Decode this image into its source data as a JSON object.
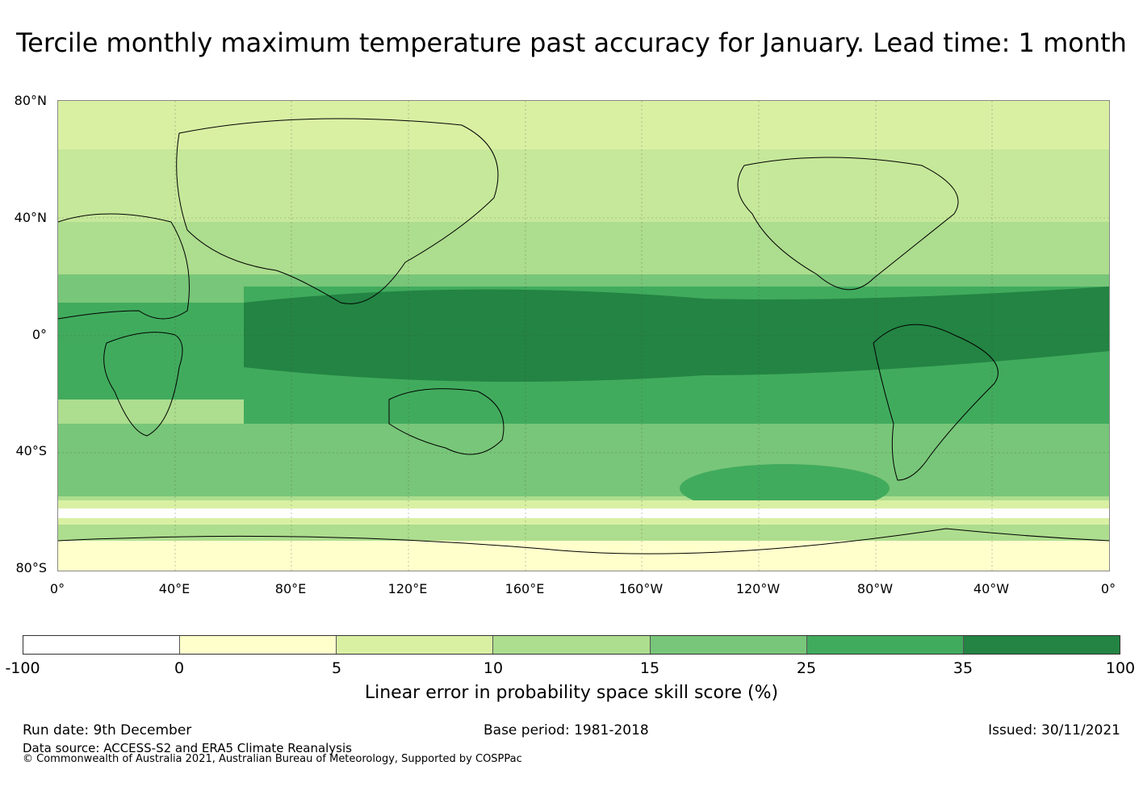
{
  "title": "Tercile monthly maximum temperature past accuracy for January. Lead time: 1 month",
  "map": {
    "lat_labels": [
      "80°N",
      "40°N",
      "0°",
      "40°S",
      "80°S"
    ],
    "lon_labels": [
      "0°",
      "40°E",
      "80°E",
      "120°E",
      "160°E",
      "160°W",
      "120°W",
      "80°W",
      "40°W",
      "0°"
    ]
  },
  "colorbar": {
    "colors": [
      "#ffffff",
      "#ffffcc",
      "#d9f0a3",
      "#addd8e",
      "#78c679",
      "#41ab5d",
      "#238443"
    ],
    "ticks": [
      "-100",
      "0",
      "5",
      "10",
      "15",
      "25",
      "35",
      "100"
    ],
    "label": "Linear error in probability space skill score (%)"
  },
  "footer": {
    "run_date": "Run date: 9th December",
    "base_period": "Base period: 1981-2018",
    "issued": "Issued: 30/11/2021",
    "data_source": "Data source: ACCESS-S2 and ERA5 Climate Reanalysis",
    "copyright": "© Commonwealth of Australia 2021, Australian Bureau of Meteorology, Supported by COSPPac"
  }
}
